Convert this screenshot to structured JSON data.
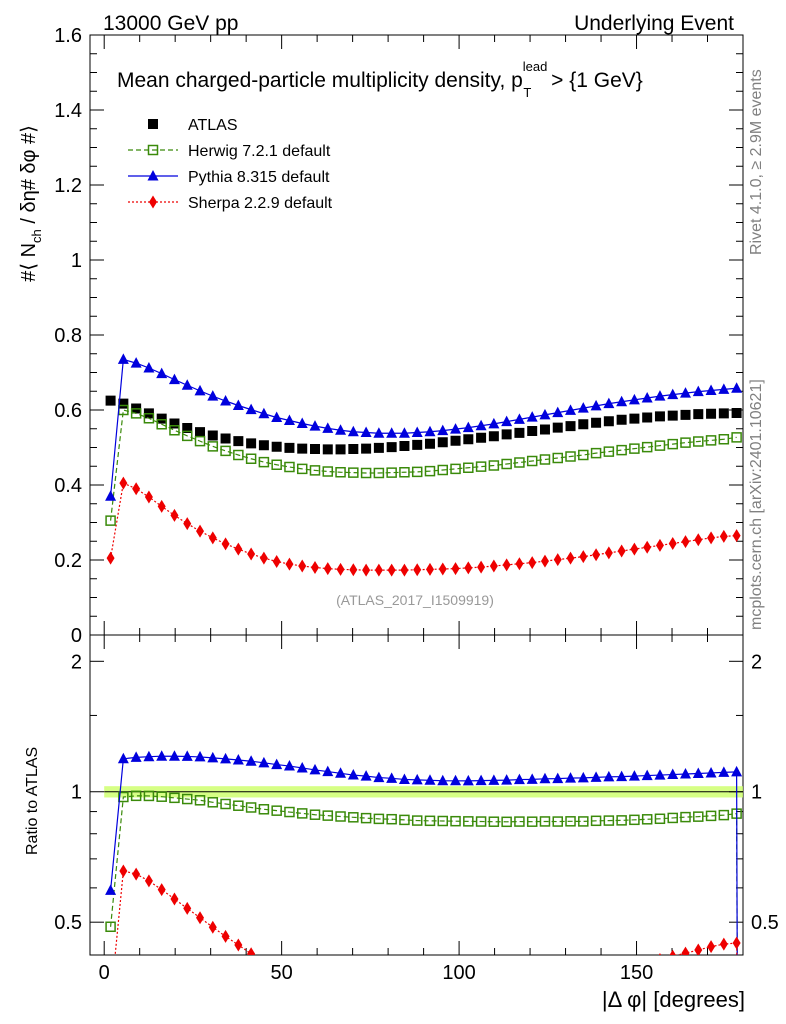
{
  "header": {
    "left": "13000 GeV pp",
    "right": "Underlying Event"
  },
  "side_labels": {
    "top": "Rivet 4.1.0, ≥ 2.9M events",
    "bottom": "mcplots.cern.ch [arXiv:2401.10621]"
  },
  "plot_title": {
    "main": "Mean charged-particle multiplicity density, p",
    "sup": "lead",
    "sub": "T",
    "tail": " > {1 GeV}"
  },
  "reference": "(ATLAS_2017_I1509919)",
  "colors": {
    "atlas": "#000000",
    "herwig": "#3a8a0a",
    "pythia": "#0000dd",
    "sherpa": "#ee0000",
    "band": "#ccff66"
  },
  "legend": [
    {
      "key": "atlas",
      "label": "ATLAS"
    },
    {
      "key": "herwig",
      "label": "Herwig 7.2.1 default"
    },
    {
      "key": "pythia",
      "label": "Pythia 8.315 default"
    },
    {
      "key": "sherpa",
      "label": "Sherpa 2.2.9 default"
    }
  ],
  "axes": {
    "main_ylabel": {
      "pre": "#⟨ N",
      "sub": "ch",
      "post": " / δη# δφ #⟩"
    },
    "ratio_ylabel": "Ratio to ATLAS",
    "xlabel": "|Δ φ| [degrees]",
    "main_yticks": [
      "0",
      "0.2",
      "0.4",
      "0.6",
      "0.8",
      "1",
      "1.2",
      "1.4",
      "1.6"
    ],
    "ratio_yticks": [
      "0.5",
      "1",
      "2"
    ],
    "xticks": [
      "0",
      "50",
      "100",
      "150"
    ]
  },
  "chart_data": {
    "type": "line",
    "title": "Mean charged-particle multiplicity density, p_T^lead > {1 GeV}",
    "xlabel": "|Δ φ| [degrees]",
    "ylabel": "#⟨ N_ch / δη# δφ #⟩",
    "xlim": [
      -4,
      180
    ],
    "ylim": [
      0,
      1.6
    ],
    "ratio_ylim": [
      0.42,
      2.3
    ],
    "x": [
      1.8,
      5.4,
      9.0,
      12.6,
      16.2,
      19.8,
      23.4,
      27.0,
      30.6,
      34.2,
      37.8,
      41.4,
      45.0,
      48.6,
      52.2,
      55.8,
      59.4,
      63.0,
      66.6,
      70.2,
      73.8,
      77.4,
      81.0,
      84.6,
      88.2,
      91.8,
      95.4,
      99.0,
      102.6,
      106.2,
      109.8,
      113.4,
      117.0,
      120.6,
      124.2,
      127.8,
      131.4,
      135.0,
      138.6,
      142.2,
      145.8,
      149.4,
      153.0,
      156.6,
      160.2,
      163.8,
      167.4,
      171.0,
      174.6,
      178.2
    ],
    "series": [
      {
        "name": "ATLAS",
        "key": "atlas",
        "values": [
          0.625,
          0.617,
          0.604,
          0.591,
          0.577,
          0.564,
          0.552,
          0.541,
          0.532,
          0.524,
          0.517,
          0.511,
          0.506,
          0.502,
          0.499,
          0.497,
          0.496,
          0.495,
          0.495,
          0.496,
          0.497,
          0.499,
          0.501,
          0.504,
          0.507,
          0.51,
          0.514,
          0.518,
          0.522,
          0.526,
          0.53,
          0.535,
          0.539,
          0.544,
          0.548,
          0.553,
          0.557,
          0.562,
          0.566,
          0.57,
          0.574,
          0.577,
          0.58,
          0.583,
          0.585,
          0.587,
          0.589,
          0.59,
          0.591,
          0.592
        ]
      },
      {
        "name": "Herwig 7.2.1 default",
        "key": "herwig",
        "values": [
          0.305,
          0.6,
          0.591,
          0.578,
          0.562,
          0.546,
          0.531,
          0.517,
          0.503,
          0.491,
          0.48,
          0.47,
          0.461,
          0.454,
          0.448,
          0.443,
          0.439,
          0.436,
          0.434,
          0.433,
          0.432,
          0.432,
          0.433,
          0.434,
          0.435,
          0.437,
          0.44,
          0.443,
          0.446,
          0.449,
          0.452,
          0.456,
          0.46,
          0.464,
          0.468,
          0.472,
          0.476,
          0.48,
          0.485,
          0.489,
          0.493,
          0.497,
          0.501,
          0.505,
          0.509,
          0.513,
          0.516,
          0.519,
          0.522,
          0.527
        ]
      },
      {
        "name": "Pythia 8.315 default",
        "key": "pythia",
        "values": [
          0.37,
          0.735,
          0.725,
          0.712,
          0.697,
          0.681,
          0.666,
          0.651,
          0.637,
          0.624,
          0.612,
          0.601,
          0.59,
          0.58,
          0.572,
          0.564,
          0.557,
          0.551,
          0.546,
          0.542,
          0.54,
          0.538,
          0.538,
          0.538,
          0.54,
          0.542,
          0.545,
          0.549,
          0.553,
          0.558,
          0.563,
          0.569,
          0.575,
          0.581,
          0.587,
          0.593,
          0.599,
          0.605,
          0.611,
          0.617,
          0.622,
          0.627,
          0.632,
          0.637,
          0.641,
          0.645,
          0.649,
          0.652,
          0.655,
          0.658
        ]
      },
      {
        "name": "Sherpa 2.2.9 default",
        "key": "sherpa",
        "values": [
          0.205,
          0.405,
          0.39,
          0.368,
          0.343,
          0.319,
          0.297,
          0.277,
          0.259,
          0.243,
          0.229,
          0.216,
          0.205,
          0.196,
          0.189,
          0.184,
          0.18,
          0.177,
          0.175,
          0.174,
          0.173,
          0.173,
          0.173,
          0.173,
          0.174,
          0.175,
          0.176,
          0.177,
          0.179,
          0.181,
          0.184,
          0.187,
          0.19,
          0.193,
          0.197,
          0.201,
          0.205,
          0.209,
          0.214,
          0.219,
          0.224,
          0.229,
          0.234,
          0.239,
          0.244,
          0.249,
          0.254,
          0.259,
          0.263,
          0.265
        ]
      }
    ]
  }
}
